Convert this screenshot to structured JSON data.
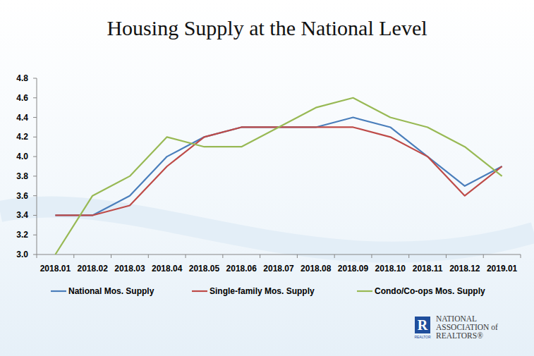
{
  "chart_data": {
    "type": "line",
    "title": "Housing Supply at the National Level",
    "categories": [
      "2018.01",
      "2018.02",
      "2018.03",
      "2018.04",
      "2018.05",
      "2018.06",
      "2018.07",
      "2018.08",
      "2018.09",
      "2018.10",
      "2018.11",
      "2018.12",
      "2019.01"
    ],
    "series": [
      {
        "name": "National Mos. Supply",
        "color": "#4a7ebb",
        "values": [
          3.4,
          3.4,
          3.6,
          4.0,
          4.2,
          4.3,
          4.3,
          4.3,
          4.4,
          4.3,
          4.0,
          3.7,
          3.9
        ]
      },
      {
        "name": "Single-family Mos. Supply",
        "color": "#be4b48",
        "values": [
          3.4,
          3.4,
          3.5,
          3.9,
          4.2,
          4.3,
          4.3,
          4.3,
          4.3,
          4.2,
          4.0,
          3.6,
          3.9
        ]
      },
      {
        "name": "Condo/Co-ops Mos. Supply",
        "color": "#98b954",
        "values": [
          3.0,
          3.6,
          3.8,
          4.2,
          4.1,
          4.1,
          4.3,
          4.5,
          4.6,
          4.4,
          4.3,
          4.1,
          3.8
        ]
      }
    ],
    "ylim": [
      3.0,
      4.8
    ],
    "yticks": [
      {
        "value": 3.0,
        "label": "3.0"
      },
      3.2,
      3.4,
      3.6,
      3.8,
      {
        "value": 4.0,
        "label": "4.0"
      },
      4.2,
      4.4,
      4.6,
      4.8
    ],
    "grid": false,
    "legend": "bottom"
  },
  "logo": {
    "lines": [
      "NATIONAL",
      "ASSOCIATION of",
      "REALTORS®"
    ],
    "mark": "R",
    "mark_caption": "REALTOR"
  }
}
